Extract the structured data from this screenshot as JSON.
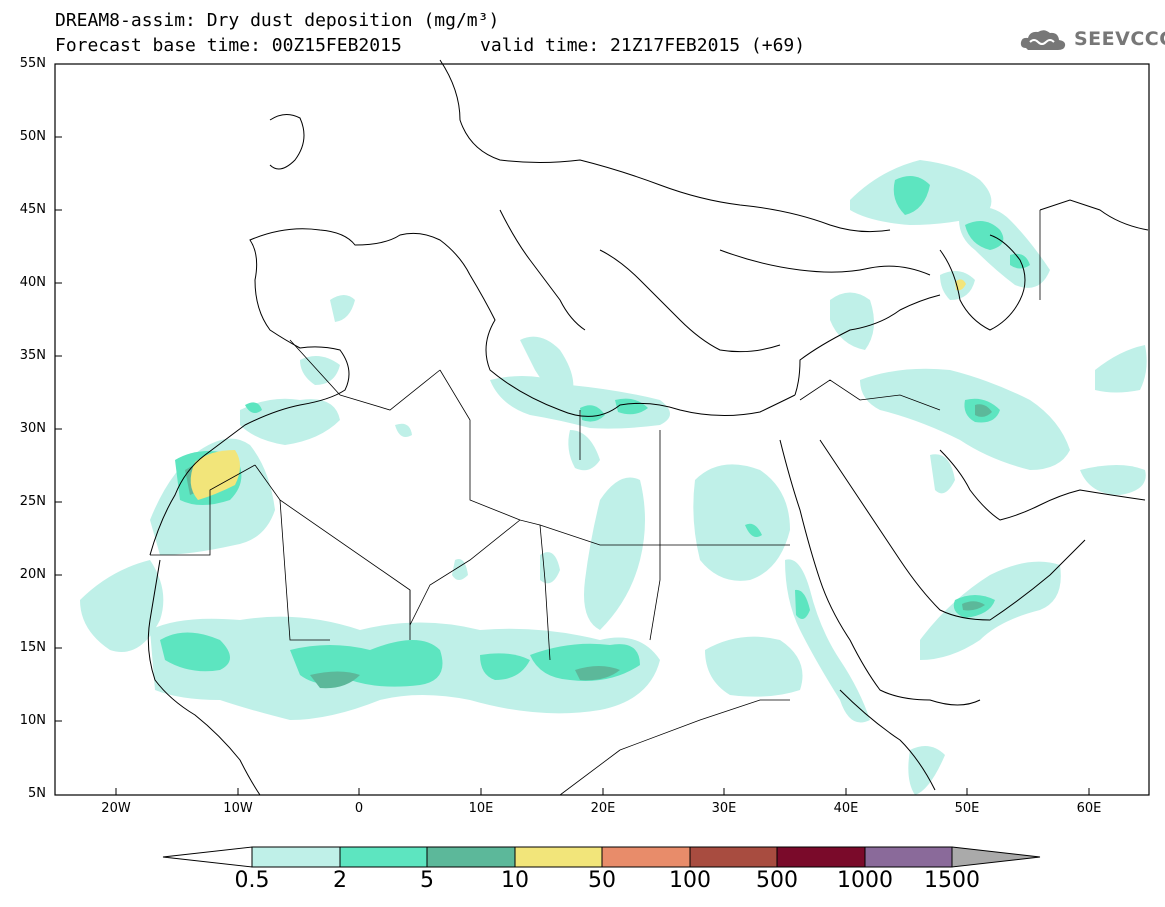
{
  "title": {
    "line1": "DREAM8-assim: Dry dust deposition (mg/m³)",
    "line2": "Forecast base time: 00Z15FEB2015",
    "valid": "valid time: 21Z17FEB2015 (+69)"
  },
  "logo": {
    "text": "SEEVCCC",
    "icon": "cloud-icon",
    "color": "#777777"
  },
  "axes": {
    "lat_labels": [
      "55N",
      "50N",
      "45N",
      "40N",
      "35N",
      "30N",
      "25N",
      "20N",
      "15N",
      "10N",
      "5N"
    ],
    "lon_labels": [
      "20W",
      "10W",
      "0",
      "10E",
      "20E",
      "30E",
      "40E",
      "50E",
      "60E"
    ]
  },
  "colorbar": {
    "labels": [
      "0.5",
      "2",
      "5",
      "10",
      "50",
      "100",
      "500",
      "1000",
      "1500"
    ],
    "colors": [
      "#bff0e8",
      "#5de5c0",
      "#5cb89a",
      "#f2e57a",
      "#e88c6a",
      "#a84c40",
      "#7a0a2a",
      "#8a6a9a",
      "#aaaaaa"
    ]
  },
  "map_colors": {
    "level1": "#bff0e8",
    "level2": "#5de5c0",
    "level3": "#5cb89a",
    "level4": "#f2e57a",
    "coast": "#000000"
  }
}
